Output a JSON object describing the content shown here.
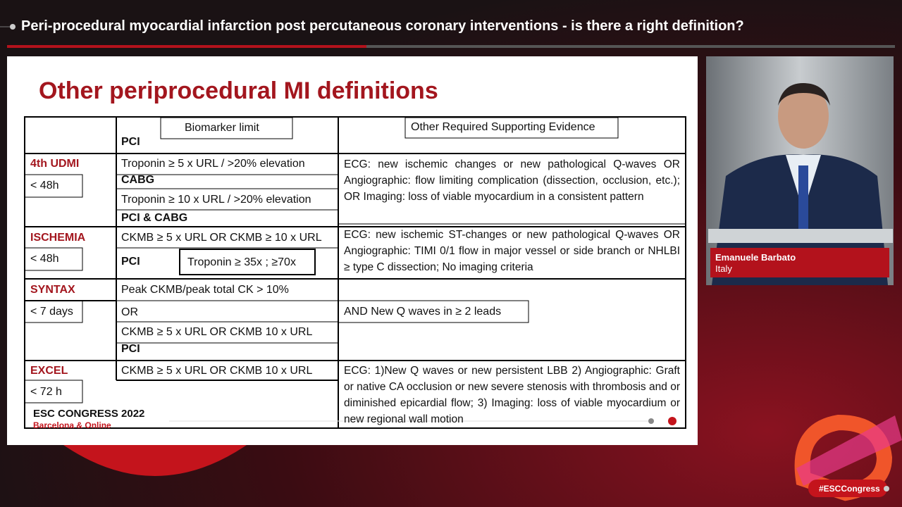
{
  "header": {
    "title": "Peri-procedural myocardial infarction post percutaneous coronary interventions - is there a right definition?"
  },
  "slide": {
    "title": "Other periprocedural MI definitions",
    "column_headers": [
      "Biomarker limit",
      "Other Required Supporting Evidence"
    ],
    "rows": [
      {
        "name": "4th UDMI",
        "window": "< 48h",
        "biomarker": [
          "PCI",
          "Troponin ≥ 5 x URL / >20% elevation",
          "CABG",
          "Troponin ≥ 10 x URL / >20% elevation",
          "PCI & CABG"
        ],
        "evidence": "ECG: new ischemic changes or new pathological Q-waves OR Angiographic: flow limiting complication (dissection, occlusion, etc.); OR Imaging: loss of viable myocardium in a consistent pattern"
      },
      {
        "name": "ISCHEMIA",
        "window": "< 48h",
        "biomarker": [
          "CKMB ≥ 5 x URL OR CKMB ≥ 10 x URL",
          "PCI",
          "Troponin ≥ 35x ; ≥70x"
        ],
        "evidence": "ECG: new ischemic ST-changes or new pathological Q-waves OR Angiographic: TIMI 0/1 flow in major vessel or side branch or NHLBI ≥ type C dissection; No imaging criteria"
      },
      {
        "name": "SYNTAX",
        "window": "< 7 days",
        "biomarker": [
          "Peak CKMB/peak total CK > 10%",
          "OR",
          "CKMB ≥ 5 x URL OR CKMB 10 x URL",
          "PCI"
        ],
        "evidence": "AND New Q waves in ≥ 2 leads"
      },
      {
        "name": "EXCEL",
        "window": "< 72 h",
        "biomarker": [
          "CKMB ≥ 5 x URL OR CKMB 10 x URL"
        ],
        "evidence": "ECG: 1)New Q waves or new persistent LBB 2) Angiographic: Graft or native CA occlusion or new severe stenosis with thrombosis and or diminished epicardial flow; 3) Imaging: loss of viable myocardium or new regional wall motion"
      }
    ],
    "footer": {
      "event": "ESC CONGRESS 2022",
      "location": "Barcelona & Online"
    }
  },
  "speaker": {
    "name": "Emanuele Barbato",
    "country": "Italy"
  },
  "hashtag": "#ESCCongress"
}
